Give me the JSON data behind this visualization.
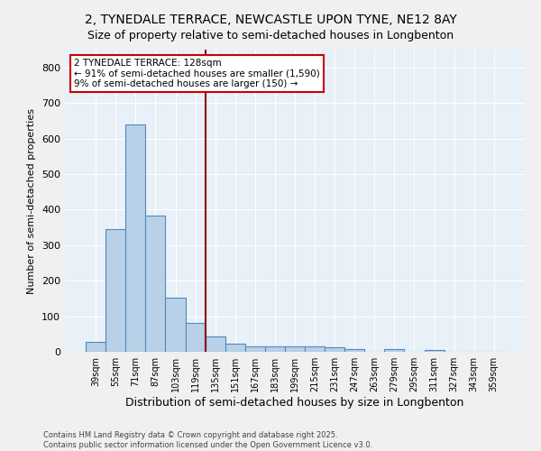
{
  "title1": "2, TYNEDALE TERRACE, NEWCASTLE UPON TYNE, NE12 8AY",
  "title2": "Size of property relative to semi-detached houses in Longbenton",
  "xlabel": "Distribution of semi-detached houses by size in Longbenton",
  "ylabel": "Number of semi-detached properties",
  "categories": [
    "39sqm",
    "55sqm",
    "71sqm",
    "87sqm",
    "103sqm",
    "119sqm",
    "135sqm",
    "151sqm",
    "167sqm",
    "183sqm",
    "199sqm",
    "215sqm",
    "231sqm",
    "247sqm",
    "263sqm",
    "279sqm",
    "295sqm",
    "311sqm",
    "327sqm",
    "343sqm",
    "359sqm"
  ],
  "values": [
    28,
    345,
    640,
    383,
    152,
    80,
    42,
    24,
    16,
    14,
    16,
    16,
    13,
    7,
    0,
    7,
    0,
    6,
    0,
    0,
    0
  ],
  "bar_color": "#b8d0e8",
  "bar_edge_color": "#5588bb",
  "vline_color": "#8b0000",
  "annotation_title": "2 TYNEDALE TERRACE: 128sqm",
  "annotation_line1": "← 91% of semi-detached houses are smaller (1,590)",
  "annotation_line2": "9% of semi-detached houses are larger (150) →",
  "annotation_box_color": "#cc0000",
  "footnote1": "Contains HM Land Registry data © Crown copyright and database right 2025.",
  "footnote2": "Contains public sector information licensed under the Open Government Licence v3.0.",
  "ylim": [
    0,
    850
  ],
  "yticks": [
    0,
    100,
    200,
    300,
    400,
    500,
    600,
    700,
    800
  ],
  "background_color": "#e8f0f8",
  "grid_color": "#ffffff",
  "fig_bg_color": "#f0f0f0"
}
